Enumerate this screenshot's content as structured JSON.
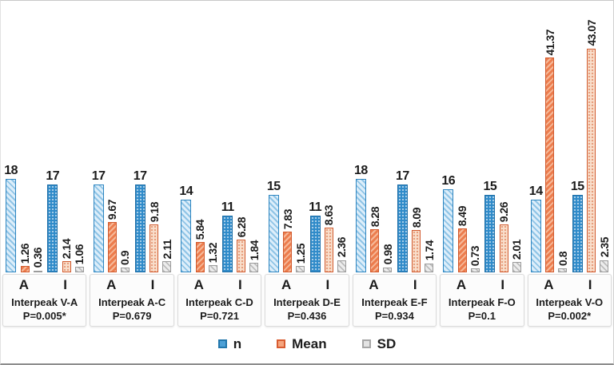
{
  "chart_data": {
    "type": "bar",
    "title": "",
    "value_axis_visible": false,
    "grid": false,
    "ylim": [
      0,
      45
    ],
    "legend_position": "bottom",
    "legend_items": [
      {
        "label": "n",
        "series": "n",
        "color": "#3f96cf"
      },
      {
        "label": "Mean",
        "series": "mean",
        "color": "#ec7d4e"
      },
      {
        "label": "SD",
        "series": "sd",
        "color": "#d9d9d9"
      }
    ],
    "series_keys": [
      "n",
      "mean",
      "sd"
    ],
    "groups": [
      {
        "title": "Interpeak V-A",
        "p_label": "P=0.005*",
        "clusters": [
          {
            "label": "A",
            "n": 18,
            "mean": 1.26,
            "sd": 0.36
          },
          {
            "label": "I",
            "n": 17,
            "mean": 2.14,
            "sd": 1.06
          }
        ]
      },
      {
        "title": "Interpeak A-C",
        "p_label": "P=0.679",
        "clusters": [
          {
            "label": "A",
            "n": 17,
            "mean": 9.67,
            "sd": 0.9
          },
          {
            "label": "I",
            "n": 17,
            "mean": 9.18,
            "sd": 2.11
          }
        ]
      },
      {
        "title": "Interpeak C-D",
        "p_label": "P=0.721",
        "clusters": [
          {
            "label": "A",
            "n": 14,
            "mean": 5.84,
            "sd": 1.32
          },
          {
            "label": "I",
            "n": 11,
            "mean": 6.28,
            "sd": 1.84
          }
        ]
      },
      {
        "title": "Interpeak D-E",
        "p_label": "P=0.436",
        "clusters": [
          {
            "label": "A",
            "n": 15,
            "mean": 7.83,
            "sd": 1.25
          },
          {
            "label": "I",
            "n": 11,
            "mean": 8.63,
            "sd": 2.36
          }
        ]
      },
      {
        "title": "Interpeak E-F",
        "p_label": "P=0.934",
        "clusters": [
          {
            "label": "A",
            "n": 18,
            "mean": 8.28,
            "sd": 0.98
          },
          {
            "label": "I",
            "n": 17,
            "mean": 8.09,
            "sd": 1.74
          }
        ]
      },
      {
        "title": "Interpeak F-O",
        "p_label": "P=0.1",
        "clusters": [
          {
            "label": "A",
            "n": 16,
            "mean": 8.49,
            "sd": 0.73
          },
          {
            "label": "I",
            "n": 15,
            "mean": 9.26,
            "sd": 2.01
          }
        ]
      },
      {
        "title": "Interpeak V-O",
        "p_label": "P=0.002*",
        "clusters": [
          {
            "label": "A",
            "n": 14,
            "mean": 41.37,
            "sd": 0.8
          },
          {
            "label": "I",
            "n": 15,
            "mean": 43.07,
            "sd": 2.35
          }
        ]
      }
    ]
  }
}
